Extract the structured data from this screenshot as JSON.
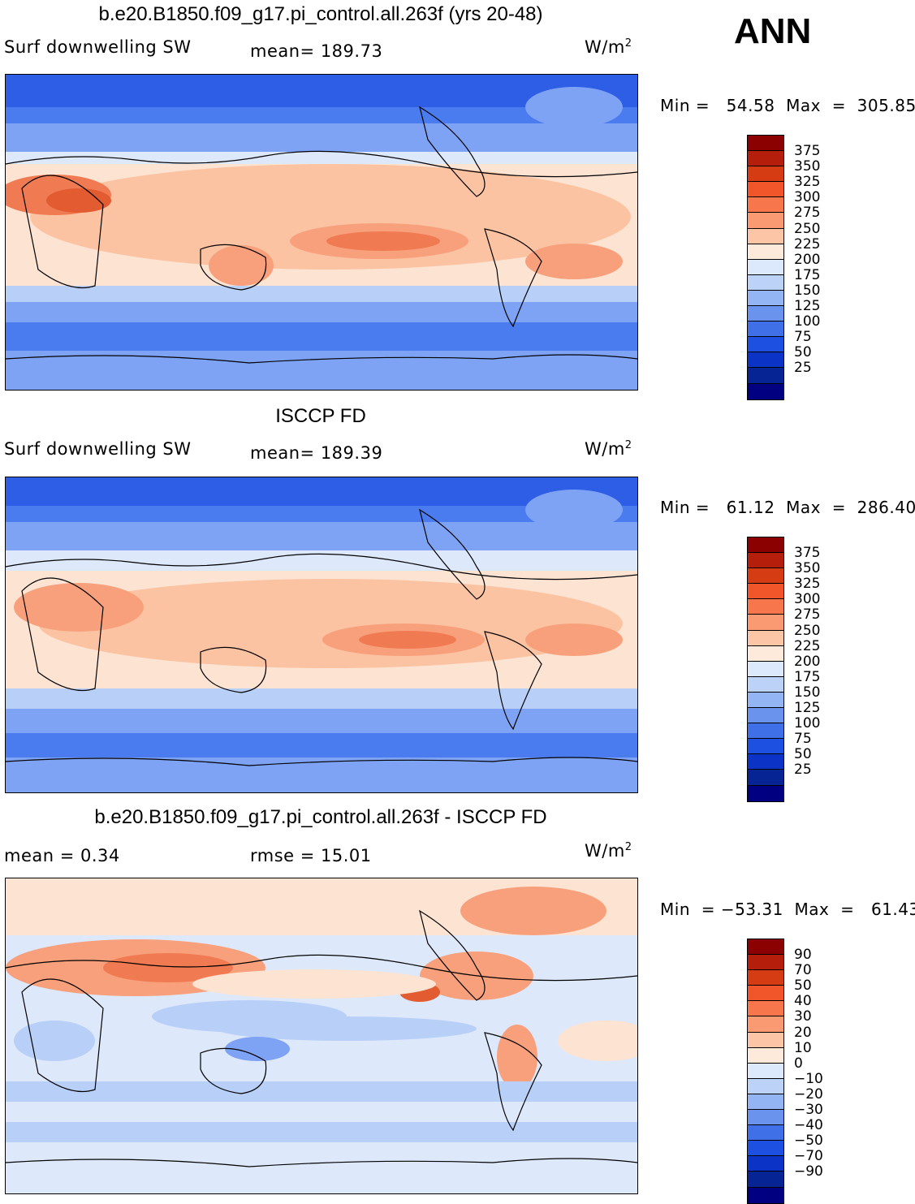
{
  "season": "ANN",
  "panels": [
    {
      "title": "b.e20.B1850.f09_g17.pi_control.all.263f (yrs 20-48)",
      "variable": "Surf downwelling SW",
      "stat1": "mean=  189.73",
      "stat2": "",
      "units": "W/m",
      "units_sup": "2",
      "minmax": "Min =   54.58  Max  =  305.85",
      "colorbar_labels": [
        "375",
        "350",
        "325",
        "300",
        "275",
        "250",
        "225",
        "200",
        "175",
        "150",
        "125",
        "100",
        "75",
        "50",
        "25"
      ]
    },
    {
      "title": "ISCCP FD",
      "variable": "Surf downwelling SW",
      "stat1": "mean=  189.39",
      "stat2": "",
      "units": "W/m",
      "units_sup": "2",
      "minmax": "Min =   61.12  Max  =  286.40",
      "colorbar_labels": [
        "375",
        "350",
        "325",
        "300",
        "275",
        "250",
        "225",
        "200",
        "175",
        "150",
        "125",
        "100",
        "75",
        "50",
        "25"
      ]
    },
    {
      "title": "b.e20.B1850.f09_g17.pi_control.all.263f - ISCCP FD",
      "variable": "mean =    0.34",
      "stat1": "",
      "stat2": "rmse =    15.01",
      "units": "W/m",
      "units_sup": "2",
      "minmax": "Min  = −53.31  Max  =   61.43",
      "colorbar_labels": [
        "90",
        "70",
        "50",
        "40",
        "30",
        "20",
        "10",
        "0",
        "−10",
        "−20",
        "−30",
        "−40",
        "−50",
        "−70",
        "−90"
      ]
    }
  ],
  "colorbar_colors": [
    "#8b0000",
    "#b41e0a",
    "#d63c14",
    "#f0562a",
    "#f7764c",
    "#fa9a72",
    "#fcc6a6",
    "#feeadb",
    "#dce8fb",
    "#bcd3f7",
    "#93b5f3",
    "#6a93ee",
    "#4070e8",
    "#1d4fe0",
    "#0b34c6",
    "#062494",
    "#000080"
  ],
  "map_palette": {
    "deep_blue": "#2e5de6",
    "blue": "#4a7cef",
    "mid_blue": "#7fa3f4",
    "light_blue": "#b8cff8",
    "pale_blue": "#dde8fb",
    "cream": "#fde3d2",
    "light_orange": "#fcc3a3",
    "orange": "#f8a07c",
    "dark_orange": "#f07a52",
    "red_orange": "#e35b30"
  }
}
